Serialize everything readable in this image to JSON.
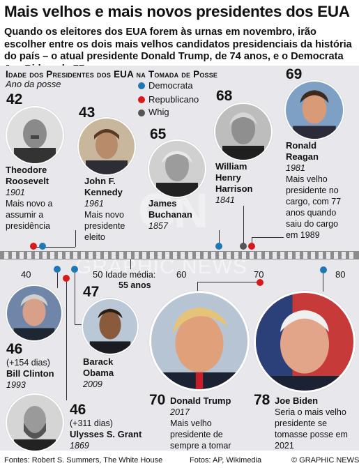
{
  "title": "Mais velhos e mais novos presidentes dos EUA",
  "subtitle": "Quando os eleitores dos EUA forem às urnas em novembro, irão escolher entre os dois mais velhos candidatos presidenciais da história do país – o atual presidente Donald Trump, de 74 anos, e o Democrata Joe Biden, de 77",
  "section_title": "Idade dos Presidentes dos EUA na Tomada de Posse",
  "section_subtitle": "Ano da posse",
  "legend": [
    {
      "label": "Democrata",
      "color": "#1f78b4"
    },
    {
      "label": "Republicano",
      "color": "#d7191c"
    },
    {
      "label": "Whig",
      "color": "#555555"
    }
  ],
  "axis": {
    "ticks": [
      "40",
      "50",
      "60",
      "70",
      "80"
    ]
  },
  "average": {
    "label": "Idade média:",
    "value": "55 anos"
  },
  "presidents": {
    "roosevelt": {
      "age": "42",
      "name": "Theodore Roosevelt",
      "year": "1901",
      "note": "Mais novo a assumir a presidência"
    },
    "kennedy": {
      "age": "43",
      "name": "John F. Kennedy",
      "year": "1961",
      "note": "Mais novo presidente eleito"
    },
    "buchanan": {
      "age": "65",
      "name": "James Buchanan",
      "year": "1857"
    },
    "harrison": {
      "age": "68",
      "name": "William Henry Harrison",
      "year": "1841"
    },
    "reagan": {
      "age": "69",
      "name": "Ronald Reagan",
      "year": "1981",
      "note": "Mais velho presidente no cargo, com 77 anos quando saiu do cargo em 1989"
    },
    "clinton": {
      "age": "46",
      "days": "(+154 dias)",
      "name": "Bill Clinton",
      "year": "1993"
    },
    "obama": {
      "age": "47",
      "name": "Barack Obama",
      "year": "2009"
    },
    "grant": {
      "age": "46",
      "days": "(+311 dias)",
      "name": "Ulysses S. Grant",
      "year": "1869"
    },
    "trump": {
      "age": "70",
      "name": "Donald Trump",
      "year": "2017",
      "note": "Mais velho presidente de sempre a tomar posse"
    },
    "biden": {
      "age": "78",
      "name": "Joe Biden",
      "note": "Seria o mais velho presidente se tomasse posse em 2021"
    }
  },
  "watermark": {
    "mark": "GN",
    "text": "GRAPHIC NEWS"
  },
  "footer": {
    "sources": "Fontes: Robert S. Summers, The White House",
    "photos": "Fotos: AP, Wikimedia",
    "credit": "© GRAPHIC NEWS"
  }
}
